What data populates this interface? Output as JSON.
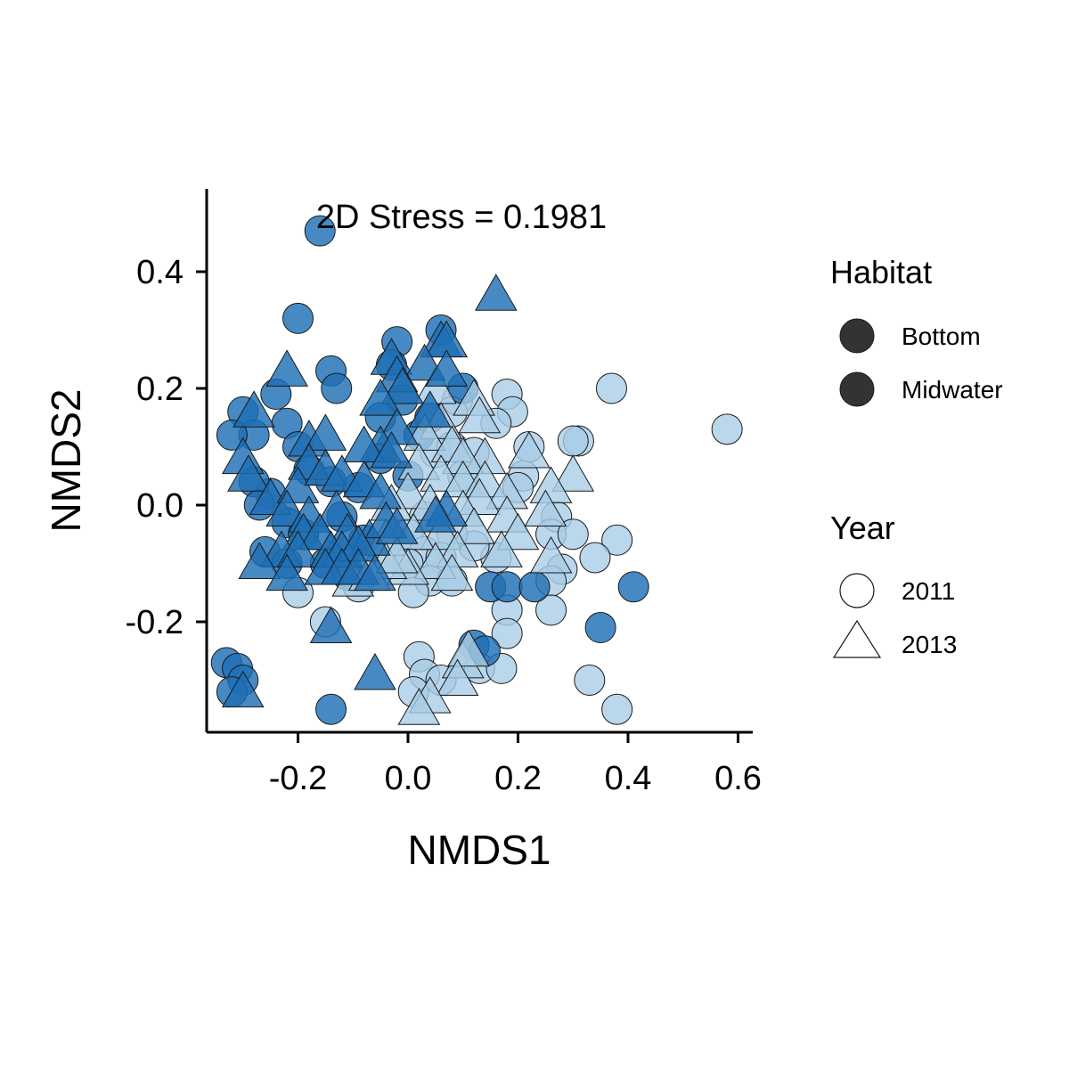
{
  "chart_data": {
    "type": "scatter",
    "title": "",
    "xlabel": "NMDS1",
    "ylabel": "NMDS2",
    "xlim": [
      -0.36,
      0.62
    ],
    "ylim": [
      -0.39,
      0.545
    ],
    "xticks": [
      "-0.2",
      "0.0",
      "0.2",
      "0.4",
      "0.6"
    ],
    "yticks": [
      "-0.2",
      "0.0",
      "0.2",
      "0.4"
    ],
    "grid": false,
    "legend_placement": "right",
    "annotation": "2D Stress = 0.1981",
    "colors": {
      "Bottom": "#1f6fb4",
      "Midwater": "#a9cde6",
      "legend_key": "#333333",
      "outline": "#1a1a1a"
    },
    "legend": {
      "habitat": {
        "title": "Habitat",
        "entries": [
          "Bottom",
          "Midwater"
        ]
      },
      "year": {
        "title": "Year",
        "entries": [
          "2011",
          "2013"
        ]
      }
    },
    "series": [
      {
        "habitat": "Bottom",
        "year": "2011",
        "marker": "circle",
        "points": [
          [
            -0.16,
            0.47
          ],
          [
            -0.2,
            0.32
          ],
          [
            -0.14,
            0.23
          ],
          [
            -0.13,
            0.2
          ],
          [
            -0.24,
            0.19
          ],
          [
            -0.3,
            0.16
          ],
          [
            -0.28,
            0.12
          ],
          [
            -0.22,
            0.14
          ],
          [
            -0.32,
            0.12
          ],
          [
            -0.2,
            0.1
          ],
          [
            -0.18,
            0.06
          ],
          [
            -0.14,
            0.04
          ],
          [
            -0.25,
            0.02
          ],
          [
            -0.28,
            0.04
          ],
          [
            -0.27,
            0.0
          ],
          [
            -0.22,
            -0.03
          ],
          [
            -0.19,
            -0.05
          ],
          [
            -0.12,
            -0.02
          ],
          [
            -0.09,
            0.03
          ],
          [
            -0.08,
            -0.06
          ],
          [
            -0.05,
            0.08
          ],
          [
            -0.02,
            0.28
          ],
          [
            -0.03,
            0.24
          ],
          [
            -0.01,
            0.18
          ],
          [
            -0.05,
            0.15
          ],
          [
            0.02,
            0.12
          ],
          [
            0.0,
            0.05
          ],
          [
            -0.26,
            -0.08
          ],
          [
            -0.22,
            -0.1
          ],
          [
            -0.15,
            -0.1
          ],
          [
            -0.11,
            -0.12
          ],
          [
            -0.33,
            -0.27
          ],
          [
            -0.31,
            -0.28
          ],
          [
            -0.3,
            -0.3
          ],
          [
            -0.32,
            -0.32
          ],
          [
            -0.14,
            -0.35
          ],
          [
            0.06,
            0.3
          ],
          [
            0.1,
            0.2
          ],
          [
            0.15,
            -0.14
          ],
          [
            0.18,
            -0.14
          ],
          [
            0.23,
            -0.14
          ],
          [
            0.41,
            -0.14
          ],
          [
            0.35,
            -0.21
          ],
          [
            0.12,
            -0.24
          ],
          [
            0.14,
            -0.25
          ],
          [
            0.04,
            0.15
          ]
        ]
      },
      {
        "habitat": "Bottom",
        "year": "2013",
        "marker": "triangle",
        "points": [
          [
            0.16,
            0.36
          ],
          [
            0.06,
            0.28
          ],
          [
            0.07,
            0.28
          ],
          [
            -0.03,
            0.25
          ],
          [
            0.03,
            0.24
          ],
          [
            -0.22,
            0.23
          ],
          [
            -0.02,
            0.22
          ],
          [
            0.07,
            0.23
          ],
          [
            -0.01,
            0.2
          ],
          [
            -0.05,
            0.18
          ],
          [
            0.04,
            0.16
          ],
          [
            -0.28,
            0.16
          ],
          [
            -0.02,
            0.13
          ],
          [
            -0.05,
            0.1
          ],
          [
            -0.08,
            0.1
          ],
          [
            -0.03,
            0.09
          ],
          [
            -0.18,
            0.11
          ],
          [
            -0.15,
            0.12
          ],
          [
            -0.18,
            0.07
          ],
          [
            -0.3,
            0.08
          ],
          [
            -0.29,
            0.05
          ],
          [
            -0.25,
            0.01
          ],
          [
            -0.2,
            0.03
          ],
          [
            -0.15,
            0.06
          ],
          [
            -0.12,
            0.05
          ],
          [
            -0.08,
            0.04
          ],
          [
            -0.05,
            0.02
          ],
          [
            -0.22,
            -0.01
          ],
          [
            -0.18,
            -0.02
          ],
          [
            -0.13,
            -0.01
          ],
          [
            -0.19,
            -0.05
          ],
          [
            -0.16,
            -0.05
          ],
          [
            -0.11,
            -0.05
          ],
          [
            -0.07,
            -0.06
          ],
          [
            -0.23,
            -0.08
          ],
          [
            -0.2,
            -0.08
          ],
          [
            -0.14,
            -0.08
          ],
          [
            -0.12,
            -0.08
          ],
          [
            -0.09,
            -0.07
          ],
          [
            -0.27,
            -0.1
          ],
          [
            -0.22,
            -0.12
          ],
          [
            -0.15,
            -0.11
          ],
          [
            -0.12,
            -0.11
          ],
          [
            -0.09,
            -0.11
          ],
          [
            -0.06,
            -0.12
          ],
          [
            -0.14,
            -0.21
          ],
          [
            -0.06,
            -0.29
          ],
          [
            -0.3,
            -0.32
          ],
          [
            0.07,
            -0.01
          ],
          [
            0.05,
            -0.02
          ],
          [
            -0.04,
            -0.03
          ],
          [
            -0.02,
            -0.04
          ]
        ]
      },
      {
        "habitat": "Midwater",
        "year": "2011",
        "marker": "circle",
        "points": [
          [
            0.58,
            0.13
          ],
          [
            0.37,
            0.2
          ],
          [
            0.18,
            0.19
          ],
          [
            0.19,
            0.16
          ],
          [
            0.09,
            0.18
          ],
          [
            0.08,
            0.16
          ],
          [
            0.16,
            0.14
          ],
          [
            0.31,
            0.11
          ],
          [
            0.3,
            0.11
          ],
          [
            0.22,
            0.1
          ],
          [
            0.21,
            0.05
          ],
          [
            0.2,
            0.03
          ],
          [
            0.1,
            0.05
          ],
          [
            0.05,
            0.09
          ],
          [
            0.08,
            0.1
          ],
          [
            0.12,
            0.09
          ],
          [
            0.27,
            -0.02
          ],
          [
            0.26,
            -0.05
          ],
          [
            0.3,
            -0.05
          ],
          [
            0.38,
            -0.06
          ],
          [
            0.34,
            -0.09
          ],
          [
            0.28,
            -0.11
          ],
          [
            0.26,
            -0.13
          ],
          [
            0.16,
            -0.09
          ],
          [
            0.12,
            -0.07
          ],
          [
            0.08,
            -0.05
          ],
          [
            0.03,
            -0.02
          ],
          [
            0.0,
            -0.05
          ],
          [
            0.03,
            -0.08
          ],
          [
            0.06,
            -0.09
          ],
          [
            0.0,
            -0.1
          ],
          [
            0.04,
            -0.13
          ],
          [
            0.08,
            -0.13
          ],
          [
            0.01,
            -0.15
          ],
          [
            -0.2,
            -0.15
          ],
          [
            -0.15,
            -0.2
          ],
          [
            -0.09,
            -0.14
          ],
          [
            0.18,
            -0.18
          ],
          [
            0.26,
            -0.18
          ],
          [
            0.18,
            -0.22
          ],
          [
            0.02,
            -0.26
          ],
          [
            0.03,
            -0.29
          ],
          [
            0.13,
            -0.28
          ],
          [
            0.17,
            -0.28
          ],
          [
            0.33,
            -0.3
          ],
          [
            0.38,
            -0.35
          ],
          [
            0.01,
            -0.32
          ],
          [
            0.06,
            -0.3
          ]
        ]
      },
      {
        "habitat": "Midwater",
        "year": "2013",
        "marker": "triangle",
        "points": [
          [
            0.05,
            0.2
          ],
          [
            0.12,
            0.18
          ],
          [
            0.13,
            0.15
          ],
          [
            0.06,
            0.14
          ],
          [
            0.03,
            0.12
          ],
          [
            0.08,
            0.1
          ],
          [
            0.22,
            0.09
          ],
          [
            0.14,
            0.08
          ],
          [
            0.1,
            0.08
          ],
          [
            0.02,
            0.07
          ],
          [
            0.06,
            0.05
          ],
          [
            0.1,
            0.04
          ],
          [
            0.14,
            0.04
          ],
          [
            0.3,
            0.05
          ],
          [
            0.26,
            0.03
          ],
          [
            0.18,
            0.02
          ],
          [
            0.13,
            0.01
          ],
          [
            0.0,
            0.02
          ],
          [
            -0.03,
            0.0
          ],
          [
            0.04,
            0.0
          ],
          [
            0.1,
            -0.01
          ],
          [
            0.18,
            -0.02
          ],
          [
            0.25,
            -0.01
          ],
          [
            0.2,
            -0.05
          ],
          [
            0.12,
            -0.04
          ],
          [
            0.06,
            -0.05
          ],
          [
            0.01,
            -0.05
          ],
          [
            -0.04,
            -0.06
          ],
          [
            0.09,
            -0.08
          ],
          [
            0.17,
            -0.08
          ],
          [
            0.26,
            -0.09
          ],
          [
            0.05,
            -0.1
          ],
          [
            0.0,
            -0.11
          ],
          [
            -0.04,
            -0.1
          ],
          [
            0.08,
            -0.12
          ],
          [
            -0.1,
            -0.13
          ],
          [
            -0.07,
            -0.12
          ],
          [
            0.1,
            -0.27
          ],
          [
            0.11,
            -0.25
          ],
          [
            0.09,
            -0.3
          ],
          [
            0.04,
            -0.33
          ],
          [
            0.02,
            -0.35
          ],
          [
            -0.02,
            -0.09
          ]
        ]
      }
    ]
  }
}
